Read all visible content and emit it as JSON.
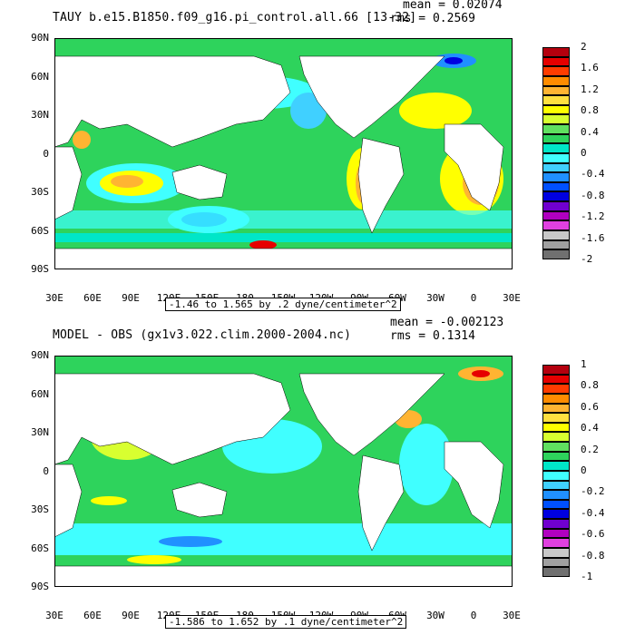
{
  "panels": [
    {
      "title": "TAUY b.e15.B1850.f09_g16.pi_control.all.66 [13-32]",
      "stats": {
        "mean": "mean = 0.02074",
        "rms": "rms = 0.2569"
      },
      "range_label": "-1.46 to 1.565 by .2 dyne/centimeter^2",
      "colorbar": {
        "labels": [
          "2",
          "1.6",
          "1.2",
          "0.8",
          "0.4",
          "0",
          "-0.4",
          "-0.8",
          "-1.2",
          "-1.6",
          "-2"
        ],
        "colors": [
          "#b4000e",
          "#e60000",
          "#ff3c00",
          "#ff8c00",
          "#ffb432",
          "#ffe040",
          "#ffff00",
          "#d8ff30",
          "#60e060",
          "#2ed35c",
          "#00e6c8",
          "#40ffff",
          "#40d0ff",
          "#2090ff",
          "#0050ff",
          "#0000e0",
          "#7000d0",
          "#b000c0",
          "#e040e0",
          "#c8c8c8",
          "#a0a0a0",
          "#707070"
        ]
      }
    },
    {
      "title": "MODEL - OBS (gx1v3.022.clim.2000-2004.nc)",
      "stats": {
        "mean": "mean = -0.002123",
        "rms": "rms = 0.1314"
      },
      "range_label": "-1.586 to 1.652 by .1 dyne/centimeter^2",
      "colorbar": {
        "labels": [
          "1",
          "0.8",
          "0.6",
          "0.4",
          "0.2",
          "0",
          "-0.2",
          "-0.4",
          "-0.6",
          "-0.8",
          "-1"
        ],
        "colors": [
          "#b4000e",
          "#e60000",
          "#ff3c00",
          "#ff8c00",
          "#ffb432",
          "#ffe040",
          "#ffff00",
          "#d8ff30",
          "#60e060",
          "#2ed35c",
          "#00e6c8",
          "#40ffff",
          "#40d0ff",
          "#2090ff",
          "#0050ff",
          "#0000e0",
          "#7000d0",
          "#b000c0",
          "#e040e0",
          "#c8c8c8",
          "#a0a0a0",
          "#707070"
        ]
      }
    }
  ],
  "axes": {
    "lat_labels": [
      "90N",
      "60N",
      "30N",
      "0",
      "30S",
      "60S",
      "90S"
    ],
    "lon_labels": [
      "30E",
      "60E",
      "90E",
      "120E",
      "150E",
      "180",
      "150W",
      "120W",
      "90W",
      "60W",
      "30W",
      "0",
      "30E"
    ]
  },
  "colors": {
    "land": "#ffffff",
    "ocean_top": "#2ed35c",
    "ocean_bottom": "#2ed35c"
  }
}
